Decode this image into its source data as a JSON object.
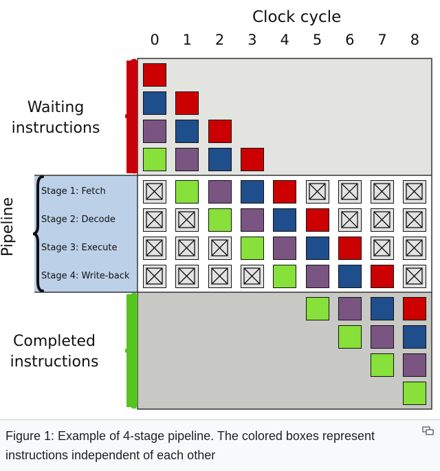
{
  "diagram": {
    "title": "Clock cycle",
    "columns": [
      "0",
      "1",
      "2",
      "3",
      "4",
      "5",
      "6",
      "7",
      "8"
    ],
    "sections": {
      "waiting": "Waiting\ninstructions",
      "pipeline": "Pipeline",
      "completed": "Completed\ninstructions"
    },
    "stages": [
      "Stage 1: Fetch",
      "Stage 2: Decode",
      "Stage 3: Execute",
      "Stage 4: Write-back"
    ],
    "colors": {
      "red": "#cc0000",
      "blue": "#1f4e8c",
      "purple": "#7b5582",
      "green": "#88e03a",
      "waiting_bg": "#e3e3df",
      "pipeline_stage_bg": "#bcd0e8",
      "completed_bg": "#c8c8c4",
      "brace_waiting": "#c8000a",
      "brace_completed": "#55c41e",
      "brace_pipeline": "#111111"
    },
    "waiting_grid": [
      [
        "red",
        null,
        null,
        null
      ],
      [
        "blue",
        "red",
        null,
        null
      ],
      [
        "purple",
        "blue",
        "red",
        null
      ],
      [
        "green",
        "purple",
        "blue",
        "red"
      ]
    ],
    "pipeline_grid": [
      [
        "empty",
        "green",
        "purple",
        "blue",
        "red",
        "empty",
        "empty",
        "empty",
        "empty"
      ],
      [
        "empty",
        "empty",
        "green",
        "purple",
        "blue",
        "red",
        "empty",
        "empty",
        "empty"
      ],
      [
        "empty",
        "empty",
        "empty",
        "green",
        "purple",
        "blue",
        "red",
        "empty",
        "empty"
      ],
      [
        "empty",
        "empty",
        "empty",
        "empty",
        "green",
        "purple",
        "blue",
        "red",
        "empty"
      ]
    ],
    "completed_grid": [
      [
        null,
        null,
        null,
        null,
        null,
        "green",
        "purple",
        "blue",
        "red"
      ],
      [
        null,
        null,
        null,
        null,
        null,
        null,
        "green",
        "purple",
        "blue"
      ],
      [
        null,
        null,
        null,
        null,
        null,
        null,
        null,
        "green",
        "purple"
      ],
      [
        null,
        null,
        null,
        null,
        null,
        null,
        null,
        null,
        "green"
      ]
    ]
  },
  "caption": "Figure 1: Example of 4-stage pipeline. The colored boxes represent instructions independent of each other",
  "expand_icon": "expand-icon"
}
